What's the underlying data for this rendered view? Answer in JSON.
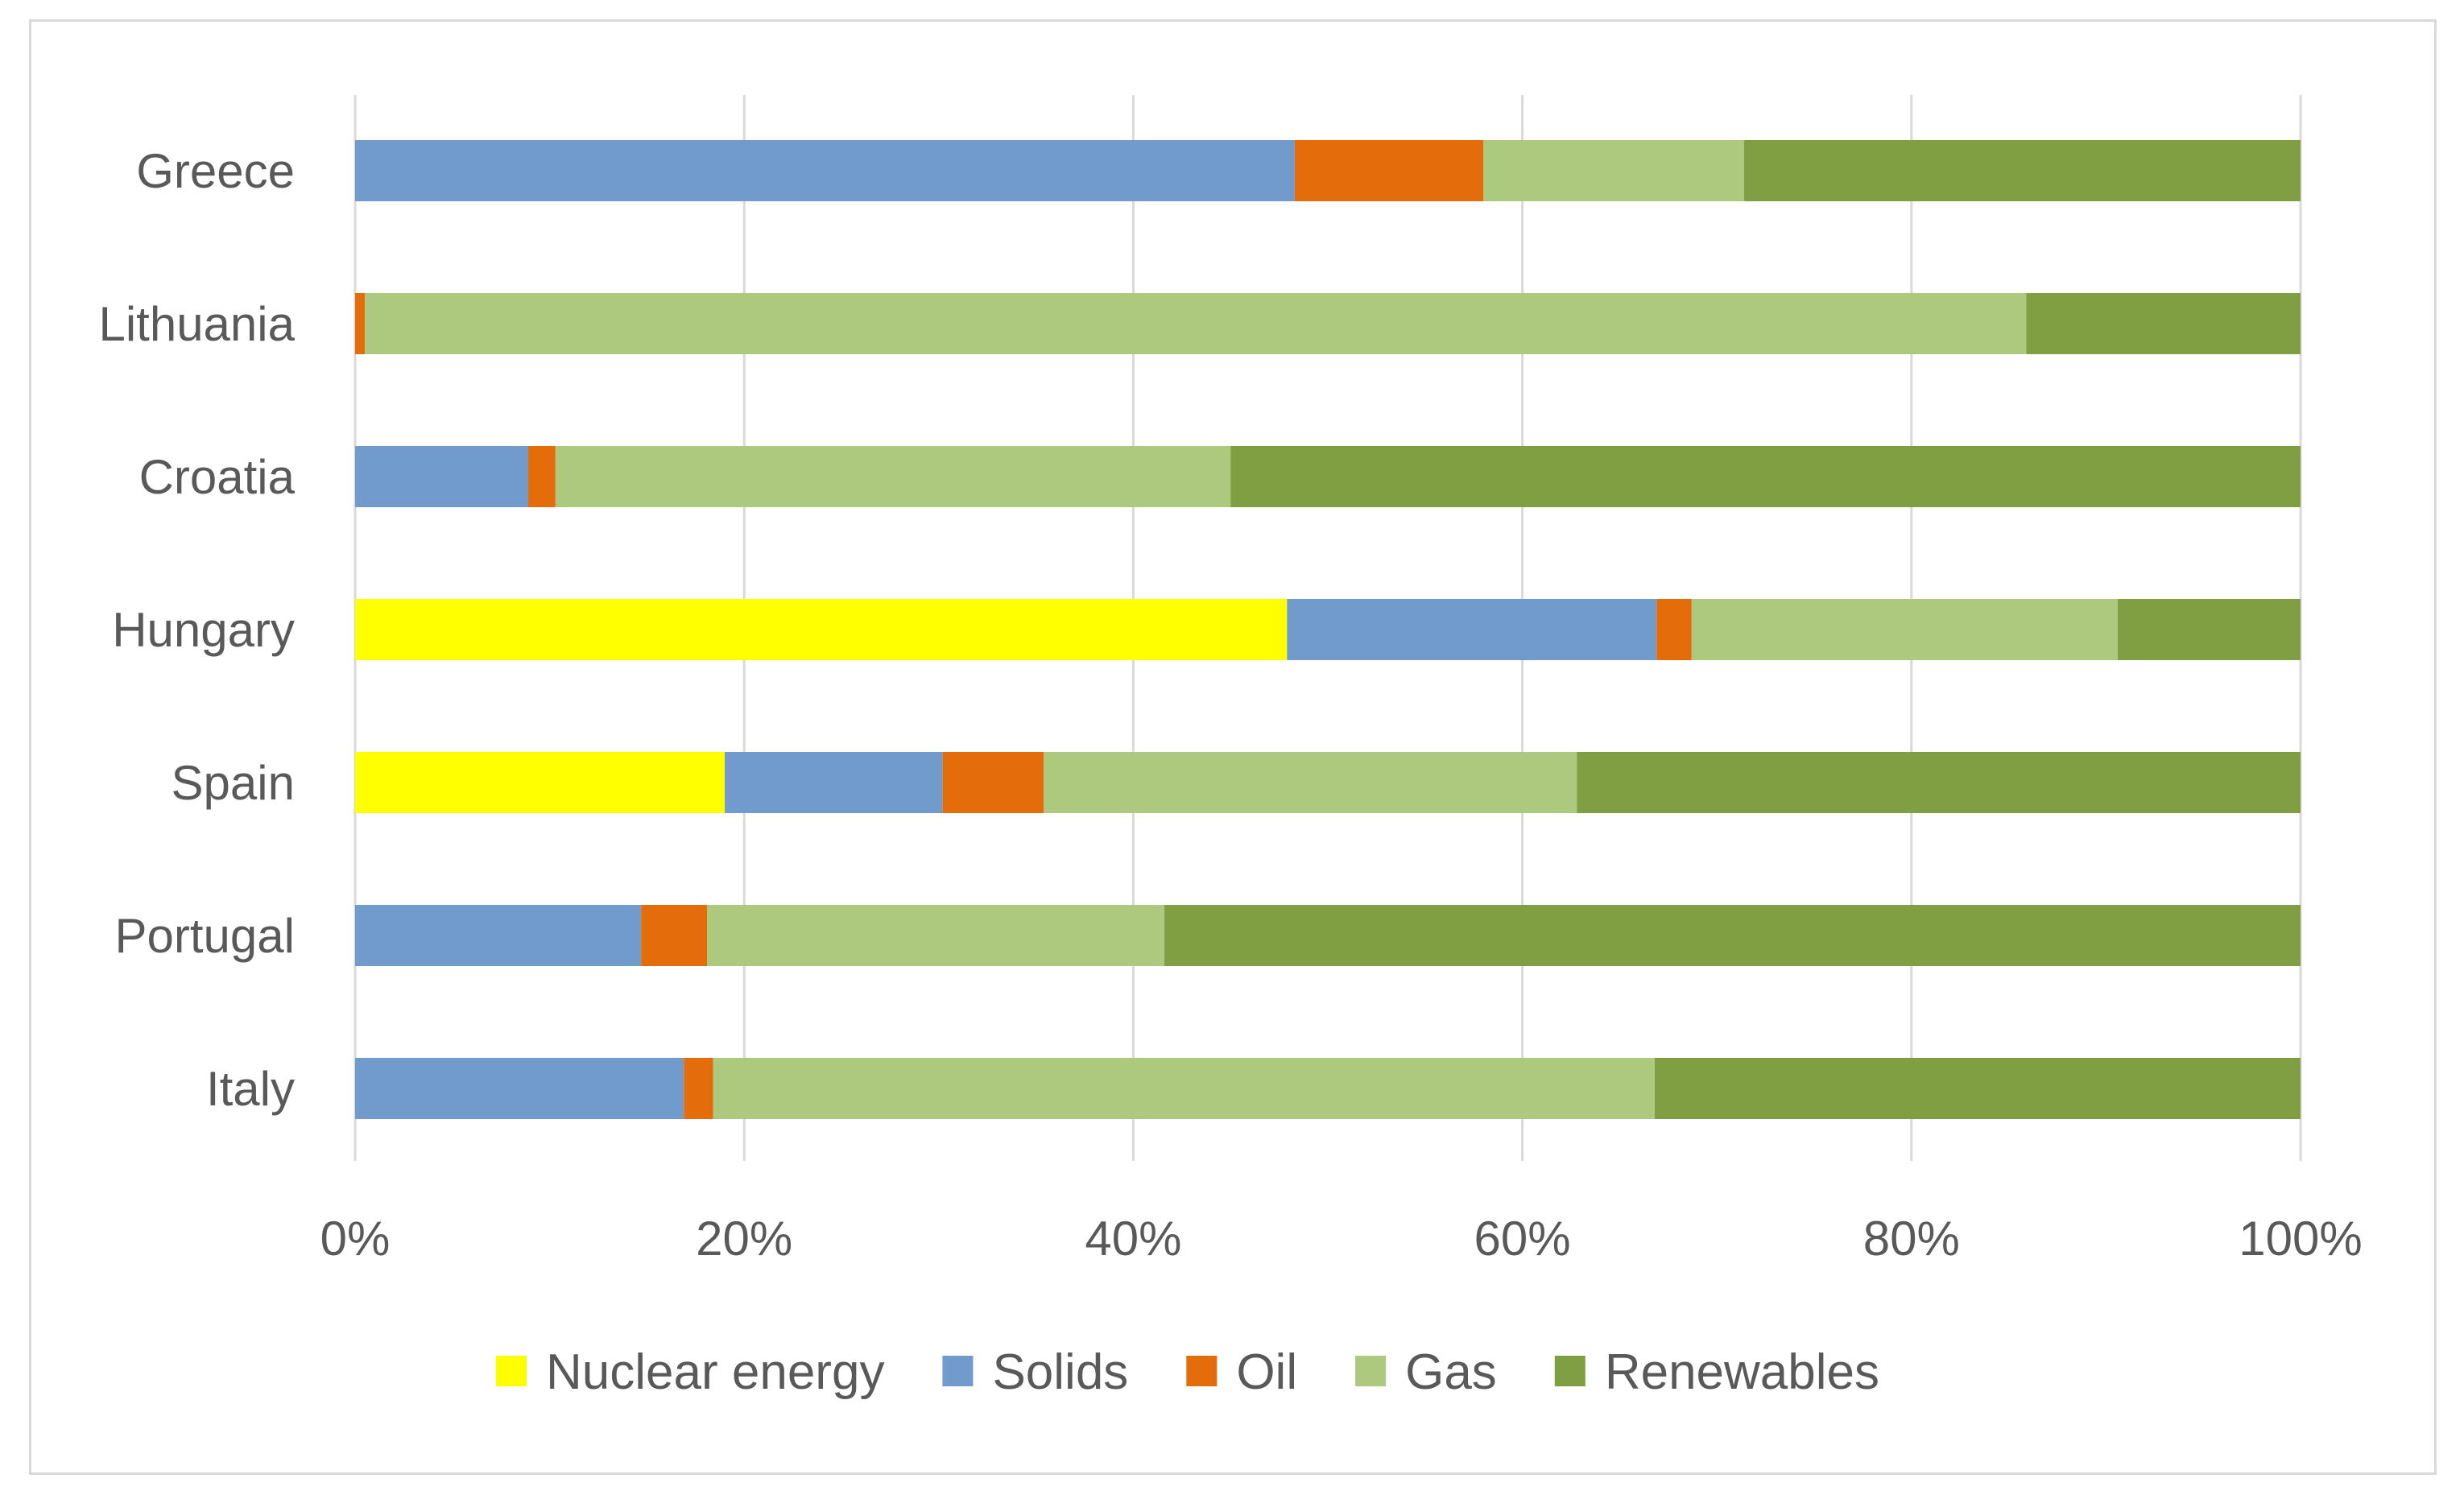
{
  "chart_data": {
    "type": "bar",
    "orientation": "horizontal",
    "stacked": "percent",
    "title": "",
    "xlabel": "",
    "ylabel": "",
    "xlim": [
      0,
      100
    ],
    "x_ticks": [
      0,
      20,
      40,
      60,
      80,
      100
    ],
    "x_tick_labels": [
      "0%",
      "20%",
      "40%",
      "60%",
      "80%",
      "100%"
    ],
    "grid": "vertical",
    "legend_position": "bottom",
    "categories": [
      "Greece",
      "Lithuania",
      "Croatia",
      "Hungary",
      "Spain",
      "Portugal",
      "Italy"
    ],
    "series": [
      {
        "name": "Nuclear energy",
        "color": "#ffff00",
        "values": [
          0,
          0,
          0,
          47.9,
          19.0,
          0,
          0
        ]
      },
      {
        "name": "Solids",
        "color": "#729bcd",
        "values": [
          48.3,
          0,
          8.9,
          19.0,
          11.2,
          14.7,
          16.9
        ]
      },
      {
        "name": "Oil",
        "color": "#e46c0a",
        "values": [
          9.7,
          0.5,
          1.4,
          1.8,
          5.2,
          3.4,
          1.5
        ]
      },
      {
        "name": "Gas",
        "color": "#adc97d",
        "values": [
          13.4,
          85.4,
          34.7,
          21.9,
          27.4,
          23.5,
          48.4
        ]
      },
      {
        "name": "Renewables",
        "color": "#7f9f42",
        "values": [
          28.6,
          14.1,
          55.0,
          9.4,
          37.2,
          58.4,
          33.2
        ]
      }
    ]
  }
}
